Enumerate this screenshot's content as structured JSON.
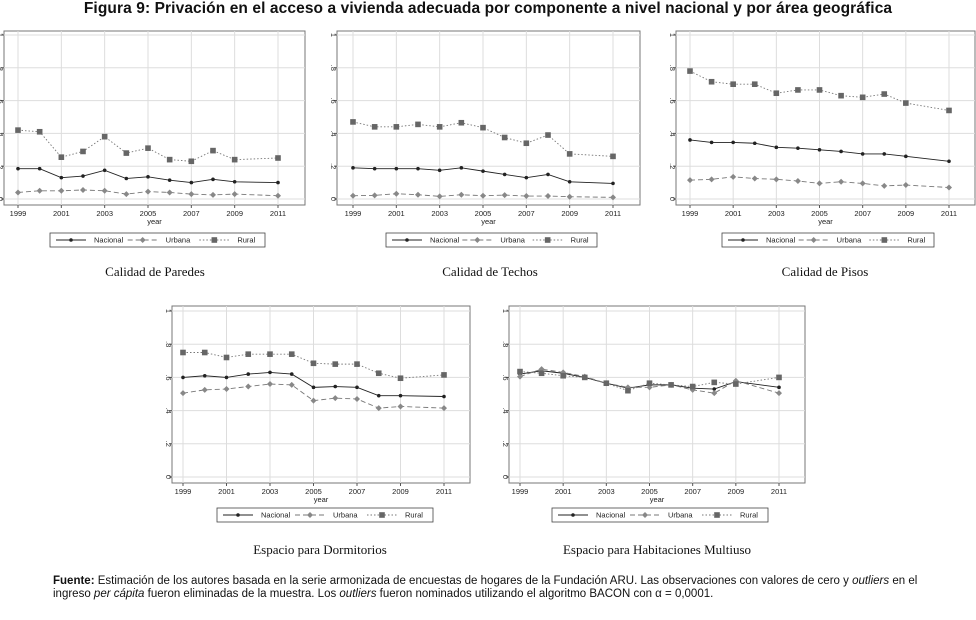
{
  "title": "Figura 9: Privación en el acceso a vivienda adecuada por componente a nivel nacional y por área geográfica",
  "chart_data": [
    {
      "type": "line",
      "title": "Calidad de Paredes",
      "xlabel": "year",
      "ylabel": "",
      "ylim": [
        0,
        1
      ],
      "grid": true,
      "legend": "bottom",
      "x": [
        1999,
        2000,
        2001,
        2002,
        2003,
        2004,
        2005,
        2006,
        2007,
        2008,
        2009,
        2011
      ],
      "xticks": [
        "1999",
        "2001",
        "2003",
        "2005",
        "2007",
        "2009",
        "2011"
      ],
      "yticks": [
        "0",
        ".2",
        ".4",
        ".6",
        ".8",
        "1"
      ],
      "series": [
        {
          "name": "Nacional",
          "values": [
            0.185,
            0.185,
            0.13,
            0.14,
            0.175,
            0.125,
            0.135,
            0.115,
            0.1,
            0.12,
            0.105,
            0.1
          ]
        },
        {
          "name": "Urbana",
          "values": [
            0.04,
            0.05,
            0.05,
            0.055,
            0.05,
            0.03,
            0.045,
            0.04,
            0.03,
            0.025,
            0.03,
            0.02
          ]
        },
        {
          "name": "Rural",
          "values": [
            0.42,
            0.41,
            0.255,
            0.29,
            0.38,
            0.28,
            0.31,
            0.24,
            0.23,
            0.295,
            0.24,
            0.25
          ]
        }
      ]
    },
    {
      "type": "line",
      "title": "Calidad de Techos",
      "xlabel": "year",
      "ylabel": "",
      "ylim": [
        0,
        1
      ],
      "grid": true,
      "legend": "bottom",
      "x": [
        1999,
        2000,
        2001,
        2002,
        2003,
        2004,
        2005,
        2006,
        2007,
        2008,
        2009,
        2011
      ],
      "xticks": [
        "1999",
        "2001",
        "2003",
        "2005",
        "2007",
        "2009",
        "2011"
      ],
      "yticks": [
        "0",
        ".2",
        ".4",
        ".6",
        ".8",
        "1"
      ],
      "series": [
        {
          "name": "Nacional",
          "values": [
            0.19,
            0.185,
            0.185,
            0.185,
            0.175,
            0.19,
            0.17,
            0.15,
            0.13,
            0.15,
            0.105,
            0.095
          ]
        },
        {
          "name": "Urbana",
          "values": [
            0.02,
            0.022,
            0.032,
            0.026,
            0.016,
            0.026,
            0.02,
            0.024,
            0.018,
            0.018,
            0.014,
            0.01
          ]
        },
        {
          "name": "Rural",
          "values": [
            0.47,
            0.44,
            0.44,
            0.455,
            0.44,
            0.465,
            0.435,
            0.375,
            0.34,
            0.39,
            0.275,
            0.26
          ]
        }
      ]
    },
    {
      "type": "line",
      "title": "Calidad de Pisos",
      "xlabel": "year",
      "ylabel": "",
      "ylim": [
        0,
        1
      ],
      "grid": true,
      "legend": "bottom",
      "x": [
        1999,
        2000,
        2001,
        2002,
        2003,
        2004,
        2005,
        2006,
        2007,
        2008,
        2009,
        2011
      ],
      "xticks": [
        "1999",
        "2001",
        "2003",
        "2005",
        "2007",
        "2009",
        "2011"
      ],
      "yticks": [
        "0",
        ".2",
        ".4",
        ".6",
        ".8",
        "1"
      ],
      "series": [
        {
          "name": "Nacional",
          "values": [
            0.36,
            0.345,
            0.345,
            0.34,
            0.315,
            0.31,
            0.3,
            0.29,
            0.275,
            0.275,
            0.26,
            0.23
          ]
        },
        {
          "name": "Urbana",
          "values": [
            0.115,
            0.12,
            0.135,
            0.125,
            0.12,
            0.11,
            0.095,
            0.105,
            0.095,
            0.08,
            0.085,
            0.07
          ]
        },
        {
          "name": "Rural",
          "values": [
            0.78,
            0.715,
            0.7,
            0.7,
            0.645,
            0.665,
            0.665,
            0.63,
            0.62,
            0.64,
            0.585,
            0.54
          ]
        }
      ]
    },
    {
      "type": "line",
      "title": "Espacio para Dormitorios",
      "xlabel": "year",
      "ylabel": "",
      "ylim": [
        0,
        1
      ],
      "grid": true,
      "legend": "bottom",
      "x": [
        1999,
        2000,
        2001,
        2002,
        2003,
        2004,
        2005,
        2006,
        2007,
        2008,
        2009,
        2011
      ],
      "xticks": [
        "1999",
        "2001",
        "2003",
        "2005",
        "2007",
        "2009",
        "2011"
      ],
      "yticks": [
        "0",
        ".2",
        ".4",
        ".6",
        ".8",
        "1"
      ],
      "series": [
        {
          "name": "Nacional",
          "values": [
            0.6,
            0.61,
            0.6,
            0.62,
            0.63,
            0.62,
            0.54,
            0.545,
            0.54,
            0.49,
            0.49,
            0.485
          ]
        },
        {
          "name": "Urbana",
          "values": [
            0.505,
            0.525,
            0.53,
            0.545,
            0.56,
            0.555,
            0.46,
            0.475,
            0.47,
            0.415,
            0.425,
            0.415
          ]
        },
        {
          "name": "Rural",
          "values": [
            0.75,
            0.75,
            0.72,
            0.74,
            0.74,
            0.74,
            0.685,
            0.68,
            0.68,
            0.625,
            0.595,
            0.615
          ]
        }
      ]
    },
    {
      "type": "line",
      "title": "Espacio para Habitaciones Multiuso",
      "xlabel": "year",
      "ylabel": "",
      "ylim": [
        0,
        1
      ],
      "grid": true,
      "legend": "bottom",
      "x": [
        1999,
        2000,
        2001,
        2002,
        2003,
        2004,
        2005,
        2006,
        2007,
        2008,
        2009,
        2011
      ],
      "xticks": [
        "1999",
        "2001",
        "2003",
        "2005",
        "2007",
        "2009",
        "2011"
      ],
      "yticks": [
        "0",
        ".2",
        ".4",
        ".6",
        ".8",
        "1"
      ],
      "series": [
        {
          "name": "Nacional",
          "values": [
            0.62,
            0.64,
            0.625,
            0.6,
            0.565,
            0.535,
            0.555,
            0.555,
            0.535,
            0.53,
            0.575,
            0.54
          ]
        },
        {
          "name": "Urbana",
          "values": [
            0.605,
            0.65,
            0.63,
            0.605,
            0.565,
            0.54,
            0.54,
            0.555,
            0.525,
            0.505,
            0.58,
            0.505
          ]
        },
        {
          "name": "Rural",
          "values": [
            0.635,
            0.625,
            0.61,
            0.6,
            0.565,
            0.52,
            0.565,
            0.555,
            0.545,
            0.57,
            0.56,
            0.6
          ]
        }
      ]
    }
  ],
  "note": {
    "label": "Fuente:",
    "p1": " Estimación de los autores basada en la serie armonizada de encuestas de hogares de la Fundación ARU. Las observaciones con valores de cero y ",
    "i1": "outliers",
    "p2": " en el ingreso ",
    "i2": "per cápita",
    "p3": " fueron eliminadas de la muestra. Los ",
    "i3": "outliers",
    "p4": " fueron nominados utilizando el algoritmo BACON con α = 0,0001."
  }
}
